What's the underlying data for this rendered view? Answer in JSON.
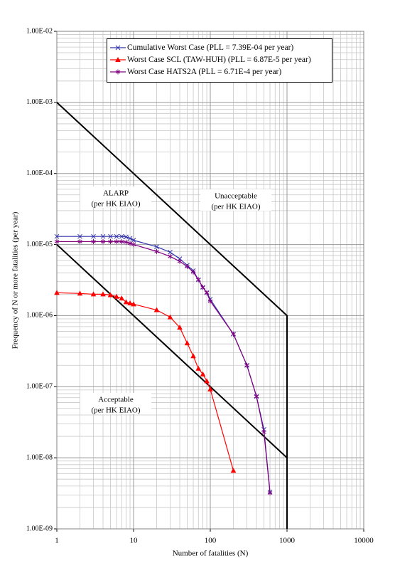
{
  "chart_data": {
    "type": "line",
    "x_label": "Number of fatalities (N)",
    "y_label": "Frequency of N or more fatalities (per year)",
    "log_x": true,
    "log_y": true,
    "grid": true,
    "minor_grid": true,
    "xlim": [
      1,
      10000
    ],
    "xticks": [
      1,
      10,
      100,
      1000,
      10000
    ],
    "ylim": [
      1e-09,
      0.01
    ],
    "yticks": [
      {
        "value": 1e-09,
        "label": "1.00E-09"
      },
      {
        "value": 1e-08,
        "label": "1.00E-08"
      },
      {
        "value": 1e-07,
        "label": "1.00E-07"
      },
      {
        "value": 1e-06,
        "label": "1.00E-06"
      },
      {
        "value": 1e-05,
        "label": "1.00E-05"
      },
      {
        "value": 0.0001,
        "label": "1.00E-04"
      },
      {
        "value": 0.001,
        "label": "1.00E-03"
      },
      {
        "value": 0.01,
        "label": "1.00E-02"
      }
    ],
    "series": [
      {
        "name": "Cumulative Worst Case (PLL = 7.39E-04 per year)",
        "color": "#3333aa",
        "marker": "x",
        "x": [
          1,
          2,
          3,
          4,
          5,
          6,
          7,
          8,
          9,
          10,
          20,
          30,
          40,
          50,
          60,
          70,
          80,
          90,
          100,
          200,
          300,
          400,
          500,
          600
        ],
        "values": [
          1.3e-05,
          1.3e-05,
          1.3e-05,
          1.3e-05,
          1.3e-05,
          1.3e-05,
          1.3e-05,
          1.28e-05,
          1.22e-05,
          1.15e-05,
          9.3e-06,
          7.8e-06,
          6.3e-06,
          5.1e-06,
          4.3e-06,
          3.2e-06,
          2.5e-06,
          2.1e-06,
          1.7e-06,
          5.5e-07,
          2e-07,
          7.3e-08,
          2.5e-08,
          3.3e-09
        ]
      },
      {
        "name": "Worst Case SCL (TAW-HUH) (PLL = 6.87E-5 per year)",
        "color": "#ff0000",
        "marker": "triangle",
        "x": [
          1,
          2,
          3,
          4,
          5,
          6,
          7,
          8,
          9,
          10,
          20,
          30,
          40,
          50,
          60,
          70,
          80,
          90,
          100,
          200
        ],
        "values": [
          2.1e-06,
          2.05e-06,
          2e-06,
          2e-06,
          1.95e-06,
          1.85e-06,
          1.75e-06,
          1.55e-06,
          1.5e-06,
          1.45e-06,
          1.2e-06,
          9.5e-07,
          6.8e-07,
          4.1e-07,
          2.7e-07,
          1.8e-07,
          1.5e-07,
          1.2e-07,
          9.2e-08,
          6.6e-09
        ]
      },
      {
        "name": "Worst Case HATS2A (PLL = 6.71E-4 per year)",
        "color": "#800080",
        "marker": "star",
        "x": [
          1,
          2,
          3,
          4,
          5,
          6,
          7,
          8,
          9,
          10,
          20,
          30,
          40,
          50,
          60,
          70,
          80,
          90,
          100,
          200,
          300,
          400,
          500,
          600
        ],
        "values": [
          1.1e-05,
          1.1e-05,
          1.1e-05,
          1.1e-05,
          1.1e-05,
          1.1e-05,
          1.1e-05,
          1.08e-05,
          1.04e-05,
          1e-05,
          8e-06,
          6.8e-06,
          5.8e-06,
          4.9e-06,
          4.1e-06,
          3.2e-06,
          2.5e-06,
          2.1e-06,
          1.6e-06,
          5.5e-07,
          2e-07,
          7.3e-08,
          2.3e-08,
          3.2e-09
        ]
      }
    ],
    "criterion_lines": [
      {
        "color": "#000000",
        "x": [
          1,
          1000,
          1000
        ],
        "values": [
          0.001,
          1e-06,
          1e-09
        ]
      },
      {
        "color": "#000000",
        "x": [
          1,
          1000
        ],
        "values": [
          1e-05,
          1e-08
        ]
      }
    ],
    "annotations": [
      {
        "lines": [
          "ALARP",
          "(per HK EIAO)"
        ]
      },
      {
        "lines": [
          "Unacceptable",
          "(per HK EIAO)"
        ]
      },
      {
        "lines": [
          "Acceptable",
          "(per HK EIAO)"
        ]
      }
    ]
  }
}
